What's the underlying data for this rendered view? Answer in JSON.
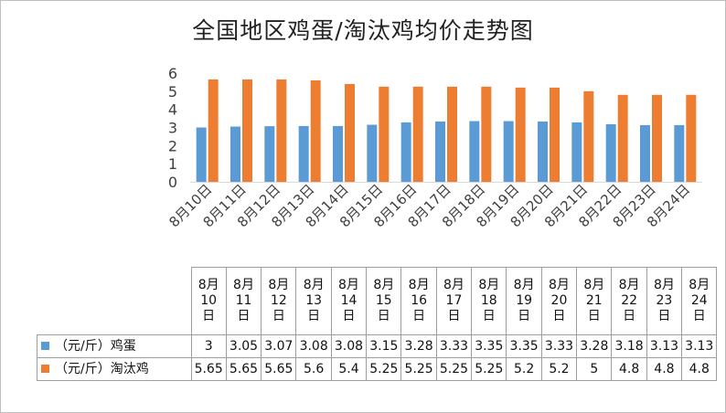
{
  "title": "全国地区鸡蛋/淘汰鸡均价走势图",
  "colors": {
    "egg": "#5b9bd5",
    "hen": "#ed7d31"
  },
  "chart_data": {
    "type": "bar",
    "title": "全国地区鸡蛋/淘汰鸡均价走势图",
    "categories": [
      "8月10日",
      "8月11日",
      "8月12日",
      "8月13日",
      "8月14日",
      "8月15日",
      "8月16日",
      "8月17日",
      "8月18日",
      "8月19日",
      "8月20日",
      "8月21日",
      "8月22日",
      "8月23日",
      "8月24日"
    ],
    "table_header": [
      [
        "8月",
        "10",
        "日"
      ],
      [
        "8月",
        "11",
        "日"
      ],
      [
        "8月",
        "12",
        "日"
      ],
      [
        "8月",
        "13",
        "日"
      ],
      [
        "8月",
        "14",
        "日"
      ],
      [
        "8月",
        "15",
        "日"
      ],
      [
        "8月",
        "16",
        "日"
      ],
      [
        "8月",
        "17",
        "日"
      ],
      [
        "8月",
        "18",
        "日"
      ],
      [
        "8月",
        "19",
        "日"
      ],
      [
        "8月",
        "20",
        "日"
      ],
      [
        "8月",
        "21",
        "日"
      ],
      [
        "8月",
        "22",
        "日"
      ],
      [
        "8月",
        "23",
        "日"
      ],
      [
        "8月",
        "24",
        "日"
      ]
    ],
    "series": [
      {
        "name": "（元/斤）鸡蛋",
        "values": [
          "3",
          "3.05",
          "3.07",
          "3.08",
          "3.08",
          "3.15",
          "3.28",
          "3.33",
          "3.35",
          "3.35",
          "3.33",
          "3.28",
          "3.18",
          "3.13",
          "3.13"
        ]
      },
      {
        "name": "（元/斤）淘汰鸡",
        "values": [
          "5.65",
          "5.65",
          "5.65",
          "5.6",
          "5.4",
          "5.25",
          "5.25",
          "5.25",
          "5.25",
          "5.2",
          "5.2",
          "5",
          "4.8",
          "4.8",
          "4.8"
        ]
      }
    ],
    "y_ticks": [
      "0",
      "1",
      "2",
      "3",
      "4",
      "5",
      "6"
    ],
    "ylim": [
      0,
      6
    ],
    "grid": false,
    "legend": "in data table"
  }
}
